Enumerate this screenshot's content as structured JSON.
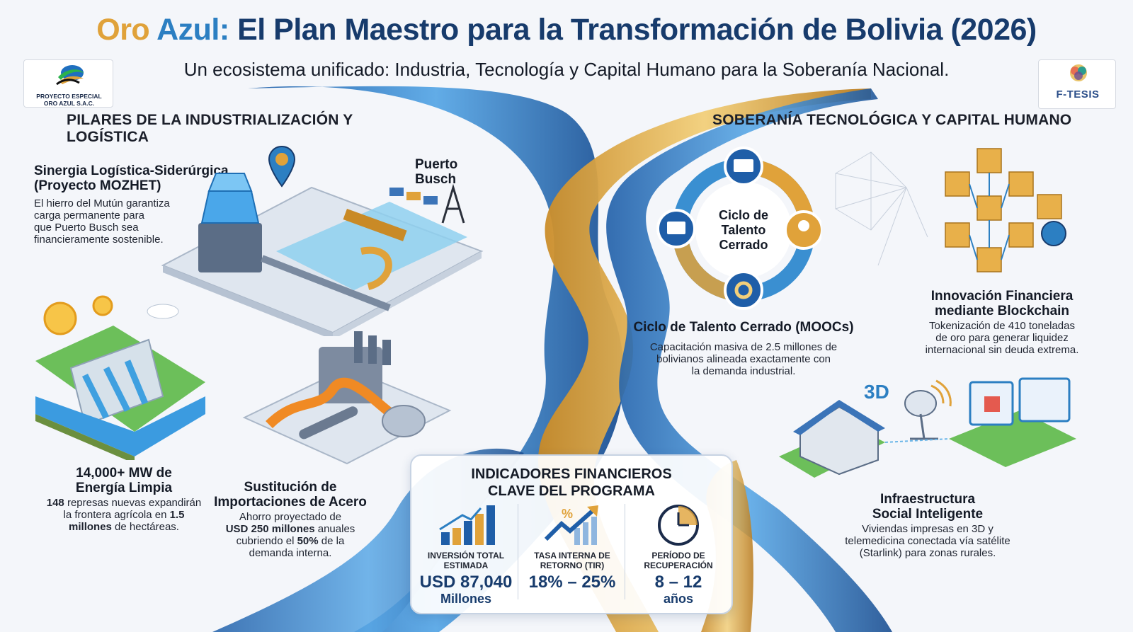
{
  "header": {
    "title_part1": "Oro",
    "title_part2": "Azul:",
    "title_part3": "El Plan Maestro para la Transformación de Bolivia (2026)",
    "subtitle": "Un ecosistema unificado: Industria, Tecnología y Capital Humano para la Soberanía Nacional."
  },
  "logos": {
    "left_line1": "PROYECTO ESPECIAL",
    "left_line2": "ORO AZUL S.A.C.",
    "right_name": "F-TESIS"
  },
  "left_section": {
    "heading": "PILARES DE LA INDUSTRIALIZACIÓN Y LOGÍSTICA",
    "sinergia_title_1": "Sinergia Logística-Siderúrgica",
    "sinergia_title_2": "(Proyecto MOZHET)",
    "sinergia_body_1": "El hierro del Mutún garantiza",
    "sinergia_body_2": "carga permanente para",
    "sinergia_body_3": "que Puerto Busch sea",
    "sinergia_body_4": "financieramente sostenible.",
    "puerto_1": "Puerto",
    "puerto_2": "Busch",
    "energia_title_1": "14,000+ MW de",
    "energia_title_2": "Energía Limpia",
    "energia_b1": "148",
    "energia_t1": " represas nuevas expandirán",
    "energia_t2": "la frontera agrícola en ",
    "energia_b2": "1.5",
    "energia_b3": "millones",
    "energia_t3": " de hectáreas.",
    "acero_title_1": "Sustitución de",
    "acero_title_2": "Importaciones de Acero",
    "acero_t1": "Ahorro proyectado de",
    "acero_b1": "USD 250 millones",
    "acero_t2": " anuales",
    "acero_t3": "cubriendo el ",
    "acero_b2": "50%",
    "acero_t4": " de la",
    "acero_t5": "demanda interna."
  },
  "right_section": {
    "heading": "SOBERANÍA TECNOLÓGICA Y CAPITAL HUMANO",
    "cycle_center_1": "Ciclo de",
    "cycle_center_2": "Talento",
    "cycle_center_3": "Cerrado",
    "talento_title": "Ciclo de Talento Cerrado (MOOCs)",
    "talento_body_1": "Capacitación masiva de 2.5 millones de",
    "talento_body_2": "bolivianos alineada exactamente con",
    "talento_body_3": "la demanda industrial.",
    "blockchain_title_1": "Innovación Financiera",
    "blockchain_title_2": "mediante Blockchain",
    "blockchain_body_1": "Tokenización de 410 toneladas",
    "blockchain_body_2": "de oro para generar liquidez",
    "blockchain_body_3": "internacional sin deuda extrema.",
    "print3d_label": "3D",
    "infra_title_1": "Infraestructura",
    "infra_title_2": "Social Inteligente",
    "infra_body_1": "Viviendas impresas en 3D y",
    "infra_body_2": "telemedicina conectada vía satélite",
    "infra_body_3": "(Starlink) para zonas rurales."
  },
  "financial": {
    "title_1": "INDICADORES FINANCIEROS",
    "title_2": "CLAVE DEL PROGRAMA",
    "inv_label_1": "INVERSIÓN TOTAL",
    "inv_label_2": "ESTIMADA",
    "inv_value": "USD 87,040",
    "inv_unit": "Millones",
    "tir_label_1": "TASA INTERNA DE",
    "tir_label_2": "RETORNO (TIR)",
    "tir_value": "18% – 25%",
    "tir_icon_text": "%",
    "rec_label_1": "PERÍODO DE",
    "rec_label_2": "RECUPERACIÓN",
    "rec_value": "8 – 12",
    "rec_unit": "años"
  },
  "colors": {
    "gold": "#e0a23a",
    "blue": "#2c7fc2",
    "navy": "#173b6c"
  }
}
